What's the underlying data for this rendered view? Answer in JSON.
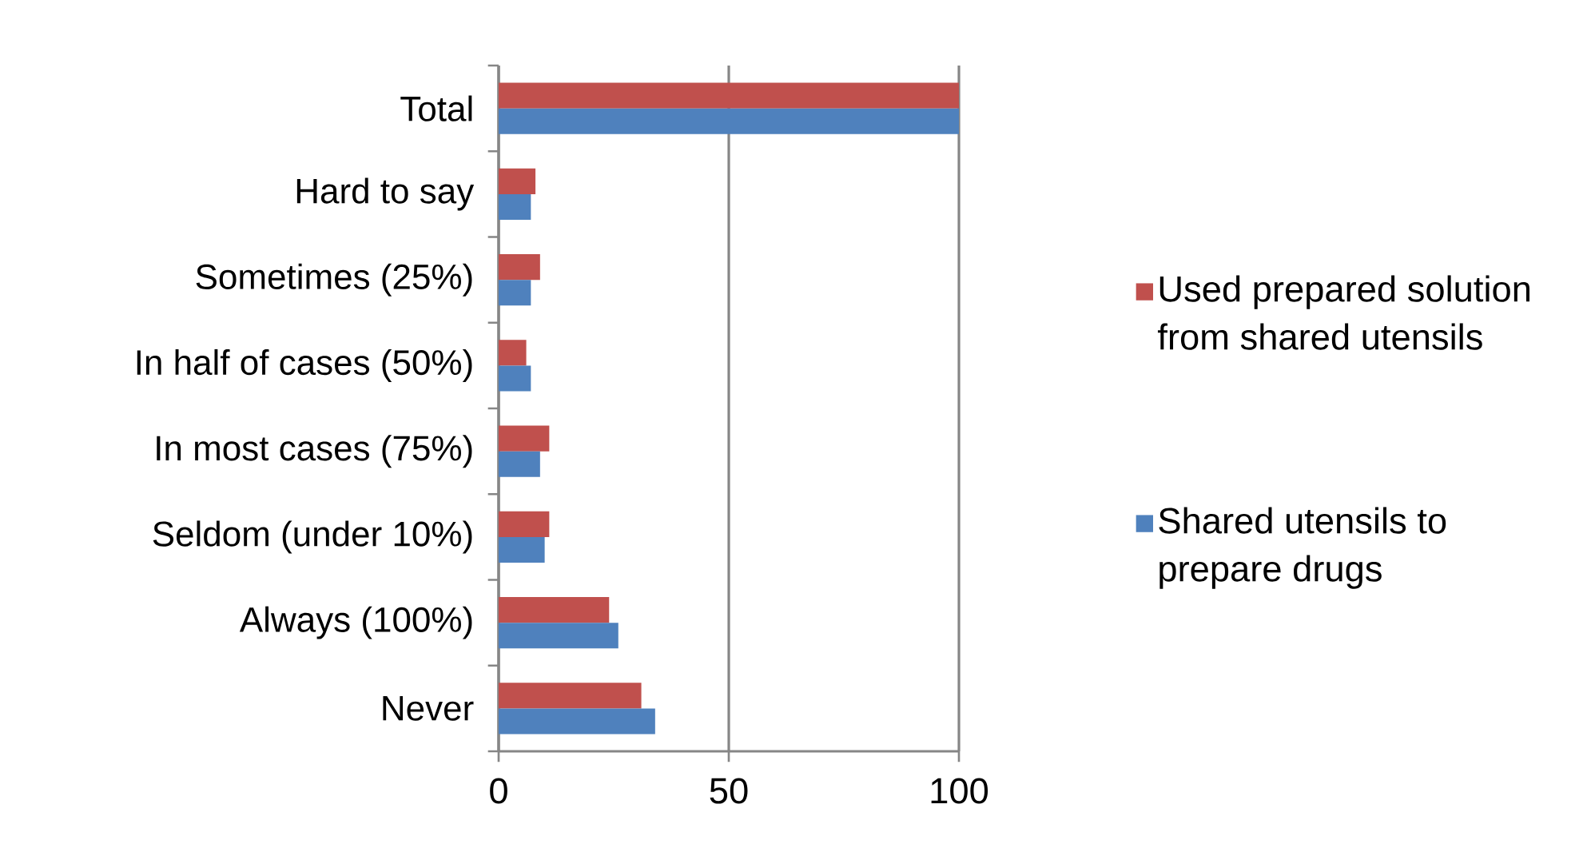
{
  "chart_data": {
    "type": "bar",
    "orientation": "horizontal",
    "categories": [
      "Total",
      "Hard to say",
      "Sometimes (25%)",
      "In half of cases (50%)",
      "In most cases (75%)",
      "Seldom (under 10%)",
      "Always (100%)",
      "Never"
    ],
    "series": [
      {
        "name": "Used prepared solution from shared utensils",
        "color": "#c0504d",
        "values": [
          100,
          8,
          9,
          6,
          11,
          11,
          24,
          31
        ]
      },
      {
        "name": "Shared utensils to prepare drugs",
        "color": "#4f81bd",
        "values": [
          100,
          7,
          7,
          7,
          9,
          10,
          26,
          34
        ]
      }
    ],
    "xlim": [
      0,
      100
    ],
    "xticks": [
      0,
      50,
      100
    ],
    "grid": "x",
    "legend": "right"
  }
}
